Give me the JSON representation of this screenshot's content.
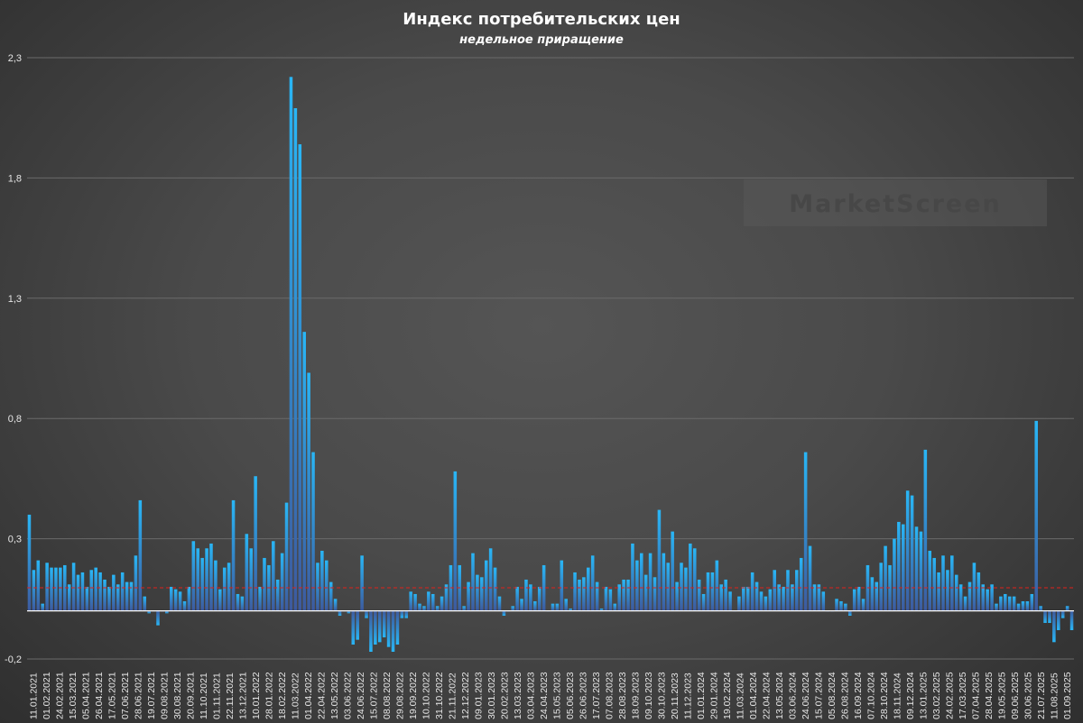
{
  "watermark": "MarketScreen",
  "colors": {
    "bar_top": "#29b6f6",
    "bar_bottom": "#3d5a9e",
    "zero_line": "#ffffff",
    "avg_line": "#e0201b",
    "grid": "#6a6a6a"
  },
  "chart_data": {
    "type": "bar",
    "title": "Индекс потребительских цен",
    "subtitle": "недельное приращение",
    "xlabel": "",
    "ylabel": "",
    "ylim": [
      -0.2,
      2.3
    ],
    "yticks": [
      -0.2,
      0.3,
      0.8,
      1.3,
      1.8,
      2.3
    ],
    "ytick_labels": [
      "-0,2",
      "0,3",
      "0,8",
      "1,3",
      "1,8",
      "2,3"
    ],
    "grid": true,
    "legend": "none",
    "reference_line": 0.096,
    "xtick_labels": [
      "11.01.2021",
      "01.02.2021",
      "24.02.2021",
      "15.03.2021",
      "05.04.2021",
      "26.04.2021",
      "17.05.2021",
      "07.06.2021",
      "28.06.2021",
      "19.07.2021",
      "09.08.2021",
      "30.08.2021",
      "20.09.2021",
      "11.10.2021",
      "01.11.2021",
      "22.11.2021",
      "13.12.2021",
      "10.01.2022",
      "28.01.2022",
      "18.02.2022",
      "11.03.2022",
      "01.04.2022",
      "22.04.2022",
      "13.05.2022",
      "03.06.2022",
      "24.06.2022",
      "15.07.2022",
      "08.08.2022",
      "29.08.2022",
      "19.09.2022",
      "10.10.2022",
      "31.10.2022",
      "21.11.2022",
      "12.12.2022",
      "09.01.2023",
      "30.01.2023",
      "20.02.2023",
      "13.03.2023",
      "03.04.2023",
      "24.04.2023",
      "15.05.2023",
      "05.06.2023",
      "26.06.2023",
      "17.07.2023",
      "07.08.2023",
      "28.08.2023",
      "18.09.2023",
      "09.10.2023",
      "30.10.2023",
      "20.11.2023",
      "11.12.2023",
      "01.01.2024",
      "29.01.2024",
      "19.02.2024",
      "11.03.2024",
      "01.04.2024",
      "22.04.2024",
      "13.05.2024",
      "03.06.2024",
      "24.06.2024",
      "15.07.2024",
      "05.08.2024",
      "26.08.2024",
      "16.09.2024",
      "07.10.2024",
      "28.10.2024",
      "18.11.2024",
      "09.12.2024",
      "13.01.2025",
      "03.02.2025",
      "24.02.2025",
      "17.03.2025",
      "07.04.2025",
      "28.04.2025",
      "19.05.2025",
      "09.06.2025",
      "30.06.2025",
      "21.07.2025",
      "11.08.2025",
      "01.09.2025"
    ],
    "values": [
      0.4,
      0.17,
      0.21,
      0.03,
      0.2,
      0.18,
      0.18,
      0.18,
      0.19,
      0.11,
      0.2,
      0.15,
      0.16,
      0.1,
      0.17,
      0.18,
      0.16,
      0.13,
      0.1,
      0.15,
      0.11,
      0.16,
      0.12,
      0.12,
      0.23,
      0.46,
      0.06,
      -0.01,
      0.0,
      -0.06,
      0.0,
      -0.01,
      0.1,
      0.09,
      0.08,
      0.04,
      0.1,
      0.29,
      0.26,
      0.22,
      0.26,
      0.28,
      0.21,
      0.09,
      0.18,
      0.2,
      0.46,
      0.07,
      0.06,
      0.32,
      0.26,
      0.56,
      0.1,
      0.22,
      0.19,
      0.29,
      0.13,
      0.24,
      0.45,
      2.22,
      2.09,
      1.94,
      1.16,
      0.99,
      0.66,
      0.2,
      0.25,
      0.21,
      0.12,
      0.05,
      -0.02,
      0.0,
      -0.01,
      -0.14,
      -0.12,
      0.23,
      -0.03,
      -0.17,
      -0.14,
      -0.13,
      -0.11,
      -0.15,
      -0.17,
      -0.14,
      -0.03,
      -0.03,
      0.08,
      0.07,
      0.03,
      0.02,
      0.08,
      0.07,
      0.02,
      0.06,
      0.11,
      0.19,
      0.58,
      0.19,
      0.02,
      0.12,
      0.24,
      0.15,
      0.14,
      0.21,
      0.26,
      0.18,
      0.06,
      -0.02,
      0.0,
      0.02,
      0.1,
      0.05,
      0.13,
      0.11,
      0.04,
      0.1,
      0.19,
      0.0,
      0.03,
      0.03,
      0.21,
      0.05,
      0.01,
      0.16,
      0.13,
      0.14,
      0.18,
      0.23,
      0.12,
      0.01,
      0.1,
      0.09,
      0.03,
      0.11,
      0.13,
      0.13,
      0.28,
      0.21,
      0.24,
      0.15,
      0.24,
      0.14,
      0.42,
      0.24,
      0.2,
      0.33,
      0.12,
      0.2,
      0.18,
      0.28,
      0.26,
      0.13,
      0.07,
      0.16,
      0.16,
      0.21,
      0.11,
      0.13,
      0.08,
      0.0,
      0.06,
      0.1,
      0.1,
      0.16,
      0.12,
      0.08,
      0.06,
      0.09,
      0.17,
      0.11,
      0.1,
      0.17,
      0.11,
      0.17,
      0.22,
      0.66,
      0.27,
      0.11,
      0.11,
      0.08,
      0.0,
      0.0,
      0.05,
      0.04,
      0.03,
      -0.02,
      0.09,
      0.1,
      0.05,
      0.19,
      0.14,
      0.12,
      0.2,
      0.27,
      0.19,
      0.3,
      0.37,
      0.36,
      0.5,
      0.48,
      0.35,
      0.33,
      0.67,
      0.25,
      0.22,
      0.16,
      0.23,
      0.17,
      0.23,
      0.15,
      0.11,
      0.06,
      0.12,
      0.2,
      0.16,
      0.11,
      0.09,
      0.11,
      0.03,
      0.06,
      0.07,
      0.06,
      0.06,
      0.03,
      0.04,
      0.04,
      0.07,
      0.79,
      0.02,
      -0.05,
      -0.05,
      -0.13,
      -0.08,
      -0.03,
      0.02,
      -0.08
    ]
  }
}
